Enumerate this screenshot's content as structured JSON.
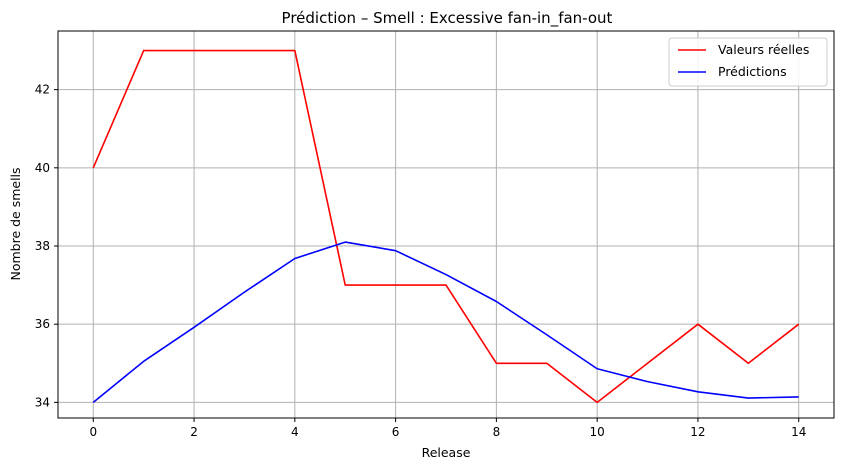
{
  "chart_data": {
    "type": "line",
    "title": "Prédiction – Smell : Excessive fan-in_fan-out",
    "xlabel": "Release",
    "ylabel": "Nombre de smells",
    "x": [
      0,
      1,
      2,
      3,
      4,
      5,
      6,
      7,
      8,
      9,
      10,
      11,
      12,
      13,
      14
    ],
    "xlim": [
      -0.7,
      14.7
    ],
    "ylim": [
      33.6,
      43.5
    ],
    "xticks": [
      0,
      2,
      4,
      6,
      8,
      10,
      12,
      14
    ],
    "yticks": [
      34,
      36,
      38,
      40,
      42
    ],
    "grid": true,
    "legend": "top-right",
    "series": [
      {
        "name": "Valeurs réelles",
        "color": "#ff0000",
        "values": [
          40,
          43,
          43,
          43,
          43,
          37,
          37,
          37,
          35,
          35,
          34,
          35,
          36,
          35,
          36
        ]
      },
      {
        "name": "Prédictions",
        "color": "#0000ff",
        "values": [
          34,
          35.05,
          35.92,
          36.82,
          37.68,
          38.1,
          37.88,
          37.27,
          36.58,
          35.73,
          34.86,
          34.53,
          34.27,
          34.11,
          34.14
        ]
      }
    ]
  }
}
